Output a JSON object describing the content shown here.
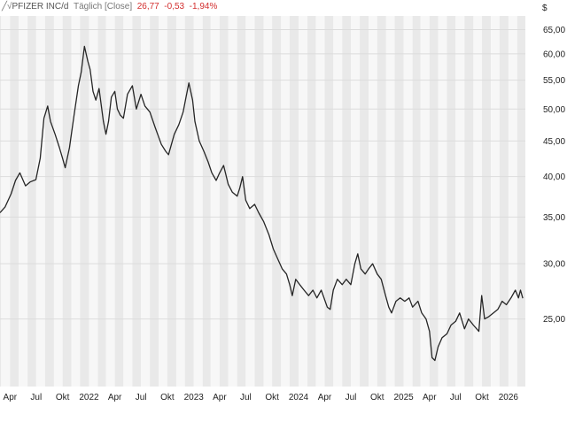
{
  "header": {
    "symbol": "PFIZER INC/d",
    "interval": "Täglich",
    "mode": "[Close]",
    "last": "26,77",
    "change": "-0,53",
    "change_pct": "-1,94%",
    "currency": "$"
  },
  "colors": {
    "line": "#262626",
    "negative": "#d32f2f",
    "band_dark": "#e9e9e9",
    "band_light": "#f7f7f7",
    "grid": "#dcdcdc"
  },
  "chart_data": {
    "type": "line",
    "title": "PFIZER INC/d",
    "xlabel": "",
    "ylabel": "$",
    "ylim": [
      20,
      68
    ],
    "y_scale": "log",
    "y_ticks": [
      25,
      30,
      35,
      40,
      45,
      50,
      55,
      60,
      65
    ],
    "y_tick_labels": [
      "25,00",
      "30,00",
      "35,00",
      "40,00",
      "45,00",
      "50,00",
      "55,00",
      "60,00",
      "65,00"
    ],
    "x_range": [
      "2021-02-25",
      "2026-03-01"
    ],
    "x_ticks": [
      {
        "date": "2021-04-01",
        "label": "Apr"
      },
      {
        "date": "2021-07-01",
        "label": "Jul"
      },
      {
        "date": "2021-10-01",
        "label": "Okt"
      },
      {
        "date": "2022-01-01",
        "label": "2022"
      },
      {
        "date": "2022-04-01",
        "label": "Apr"
      },
      {
        "date": "2022-07-01",
        "label": "Jul"
      },
      {
        "date": "2022-10-01",
        "label": "Okt"
      },
      {
        "date": "2023-01-01",
        "label": "2023"
      },
      {
        "date": "2023-04-01",
        "label": "Apr"
      },
      {
        "date": "2023-07-01",
        "label": "Jul"
      },
      {
        "date": "2023-10-01",
        "label": "Okt"
      },
      {
        "date": "2024-01-01",
        "label": "2024"
      },
      {
        "date": "2024-04-01",
        "label": "Apr"
      },
      {
        "date": "2024-07-01",
        "label": "Jul"
      },
      {
        "date": "2024-10-01",
        "label": "Okt"
      },
      {
        "date": "2025-01-01",
        "label": "2025"
      },
      {
        "date": "2025-04-01",
        "label": "Apr"
      },
      {
        "date": "2025-07-01",
        "label": "Jul"
      },
      {
        "date": "2025-10-01",
        "label": "Okt"
      },
      {
        "date": "2026-01-01",
        "label": "2026"
      }
    ],
    "grid": true,
    "series": [
      {
        "name": "PFIZER INC/d",
        "points": [
          [
            "2021-02-25",
            35.5
          ],
          [
            "2021-03-15",
            36.2
          ],
          [
            "2021-04-05",
            37.8
          ],
          [
            "2021-04-20",
            39.5
          ],
          [
            "2021-05-05",
            40.5
          ],
          [
            "2021-05-25",
            38.8
          ],
          [
            "2021-06-10",
            39.3
          ],
          [
            "2021-06-30",
            39.6
          ],
          [
            "2021-07-15",
            42.5
          ],
          [
            "2021-07-28",
            48.5
          ],
          [
            "2021-08-10",
            50.5
          ],
          [
            "2021-08-20",
            48.0
          ],
          [
            "2021-09-05",
            46.0
          ],
          [
            "2021-09-20",
            44.0
          ],
          [
            "2021-10-01",
            42.5
          ],
          [
            "2021-10-10",
            41.2
          ],
          [
            "2021-10-25",
            44.0
          ],
          [
            "2021-11-10",
            49.0
          ],
          [
            "2021-11-25",
            54.0
          ],
          [
            "2021-12-05",
            56.5
          ],
          [
            "2021-12-16",
            61.5
          ],
          [
            "2021-12-28",
            58.5
          ],
          [
            "2022-01-05",
            57.0
          ],
          [
            "2022-01-15",
            53.0
          ],
          [
            "2022-01-25",
            51.5
          ],
          [
            "2022-02-05",
            53.5
          ],
          [
            "2022-02-20",
            48.0
          ],
          [
            "2022-03-01",
            46.0
          ],
          [
            "2022-03-10",
            48.0
          ],
          [
            "2022-03-20",
            52.0
          ],
          [
            "2022-04-01",
            53.0
          ],
          [
            "2022-04-10",
            50.0
          ],
          [
            "2022-04-20",
            49.0
          ],
          [
            "2022-05-01",
            48.5
          ],
          [
            "2022-05-15",
            52.5
          ],
          [
            "2022-06-01",
            54.0
          ],
          [
            "2022-06-15",
            50.0
          ],
          [
            "2022-07-01",
            52.5
          ],
          [
            "2022-07-15",
            50.5
          ],
          [
            "2022-08-01",
            49.5
          ],
          [
            "2022-08-20",
            47.0
          ],
          [
            "2022-09-10",
            44.5
          ],
          [
            "2022-09-25",
            43.5
          ],
          [
            "2022-10-05",
            43.0
          ],
          [
            "2022-10-25",
            46.0
          ],
          [
            "2022-11-10",
            47.5
          ],
          [
            "2022-11-25",
            49.5
          ],
          [
            "2022-12-05",
            52.0
          ],
          [
            "2022-12-15",
            54.5
          ],
          [
            "2022-12-28",
            51.5
          ],
          [
            "2023-01-05",
            48.0
          ],
          [
            "2023-01-20",
            45.0
          ],
          [
            "2023-02-05",
            43.5
          ],
          [
            "2023-02-20",
            42.0
          ],
          [
            "2023-03-05",
            40.5
          ],
          [
            "2023-03-20",
            39.5
          ],
          [
            "2023-04-01",
            40.5
          ],
          [
            "2023-04-15",
            41.5
          ],
          [
            "2023-05-01",
            39.0
          ],
          [
            "2023-05-15",
            38.0
          ],
          [
            "2023-06-01",
            37.5
          ],
          [
            "2023-06-10",
            38.5
          ],
          [
            "2023-06-20",
            40.0
          ],
          [
            "2023-07-01",
            37.0
          ],
          [
            "2023-07-15",
            36.0
          ],
          [
            "2023-08-01",
            36.5
          ],
          [
            "2023-08-15",
            35.5
          ],
          [
            "2023-09-01",
            34.5
          ],
          [
            "2023-09-20",
            33.0
          ],
          [
            "2023-10-05",
            31.5
          ],
          [
            "2023-10-20",
            30.5
          ],
          [
            "2023-11-05",
            29.5
          ],
          [
            "2023-11-20",
            29.0
          ],
          [
            "2023-12-01",
            28.0
          ],
          [
            "2023-12-10",
            27.0
          ],
          [
            "2023-12-22",
            28.5
          ],
          [
            "2024-01-05",
            28.0
          ],
          [
            "2024-01-20",
            27.5
          ],
          [
            "2024-02-05",
            27.0
          ],
          [
            "2024-02-20",
            27.5
          ],
          [
            "2024-03-05",
            26.8
          ],
          [
            "2024-03-20",
            27.5
          ],
          [
            "2024-04-10",
            26.0
          ],
          [
            "2024-04-20",
            25.8
          ],
          [
            "2024-05-01",
            27.5
          ],
          [
            "2024-05-15",
            28.5
          ],
          [
            "2024-06-01",
            28.0
          ],
          [
            "2024-06-15",
            28.5
          ],
          [
            "2024-07-01",
            28.0
          ],
          [
            "2024-07-15",
            30.0
          ],
          [
            "2024-07-25",
            31.0
          ],
          [
            "2024-08-05",
            29.5
          ],
          [
            "2024-08-20",
            29.0
          ],
          [
            "2024-09-01",
            29.5
          ],
          [
            "2024-09-15",
            30.0
          ],
          [
            "2024-10-01",
            29.0
          ],
          [
            "2024-10-15",
            28.5
          ],
          [
            "2024-10-30",
            27.0
          ],
          [
            "2024-11-10",
            26.0
          ],
          [
            "2024-11-20",
            25.5
          ],
          [
            "2024-12-05",
            26.5
          ],
          [
            "2024-12-20",
            26.8
          ],
          [
            "2025-01-05",
            26.5
          ],
          [
            "2025-01-20",
            26.8
          ],
          [
            "2025-02-01",
            26.0
          ],
          [
            "2025-02-20",
            26.5
          ],
          [
            "2025-03-05",
            25.5
          ],
          [
            "2025-03-20",
            25.0
          ],
          [
            "2025-04-01",
            24.0
          ],
          [
            "2025-04-10",
            22.0
          ],
          [
            "2025-04-20",
            21.8
          ],
          [
            "2025-05-01",
            22.8
          ],
          [
            "2025-05-15",
            23.5
          ],
          [
            "2025-06-01",
            23.8
          ],
          [
            "2025-06-15",
            24.5
          ],
          [
            "2025-07-01",
            24.8
          ],
          [
            "2025-07-15",
            25.5
          ],
          [
            "2025-08-01",
            24.2
          ],
          [
            "2025-08-15",
            25.0
          ],
          [
            "2025-09-01",
            24.5
          ],
          [
            "2025-09-20",
            24.0
          ],
          [
            "2025-09-30",
            27.0
          ],
          [
            "2025-10-10",
            25.0
          ],
          [
            "2025-10-25",
            25.2
          ],
          [
            "2025-11-10",
            25.5
          ],
          [
            "2025-11-25",
            25.8
          ],
          [
            "2025-12-10",
            26.5
          ],
          [
            "2025-12-25",
            26.2
          ],
          [
            "2026-01-10",
            26.8
          ],
          [
            "2026-01-25",
            27.5
          ],
          [
            "2026-02-05",
            26.8
          ],
          [
            "2026-02-12",
            27.5
          ],
          [
            "2026-02-20",
            26.77
          ]
        ]
      }
    ]
  }
}
